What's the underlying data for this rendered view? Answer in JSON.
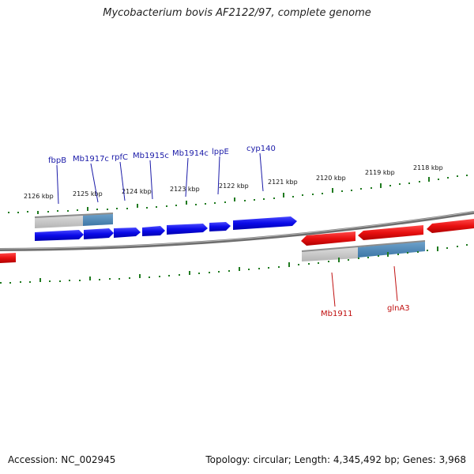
{
  "title": "Mycobacterium bovis AF2122/97, complete genome",
  "footer": {
    "accession": "Accession: NC_002945",
    "summary": "Topology: circular; Length: 4,345,492 bp; Genes: 3,968"
  },
  "scale": {
    "tick_labels": [
      "2126 kbp",
      "2125 kbp",
      "2124 kbp",
      "2123 kbp",
      "2122 kbp",
      "2121 kbp",
      "2120 kbp",
      "2119 kbp",
      "2118 kbp"
    ]
  },
  "genes": {
    "forward": [
      "fbpB",
      "Mb1917c",
      "rpfC",
      "Mb1915c",
      "Mb1914c",
      "lppE",
      "cyp140"
    ],
    "reverse": [
      "Mb1911",
      "glnA3"
    ]
  },
  "colors": {
    "forward_gene": "#1212e8",
    "reverse_gene": "#e81212",
    "tick": "#1f7a1f",
    "backbone": "#777777",
    "highlight_gray": "#c4c4c4",
    "highlight_blue": "#4a86b8"
  }
}
